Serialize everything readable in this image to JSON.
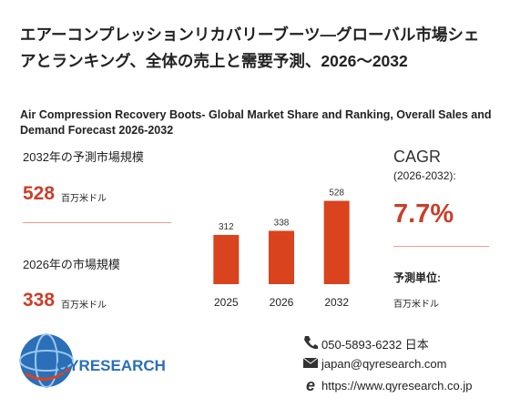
{
  "header": {
    "title": "エアーコンプレッションリカバリーブーツ—グローバル市場シェアとランキング、全体の売上と需要予測、2026～2032",
    "subtitle": "Air Compression Recovery Boots- Global Market Share and Ranking, Overall Sales and Demand Forecast 2026-2032"
  },
  "stats": [
    {
      "label": "2032年の予測市場規模",
      "value": 528,
      "unit": "百万米ドル"
    },
    {
      "label": "2026年の市場規模",
      "value": 338,
      "unit": "百万米ドル"
    }
  ],
  "chart_data": {
    "type": "bar",
    "categories": [
      "2025",
      "2026",
      "2032"
    ],
    "values": [
      312,
      338,
      528
    ],
    "color": "#d9431e",
    "ylim": [
      0,
      560
    ]
  },
  "cagr": {
    "label": "CAGR",
    "period": "(2026-2032):",
    "value": "7.7%",
    "unit_label": "予測単位:",
    "unit": "百万米ドル"
  },
  "logo": "QYRESEARCH",
  "contact": {
    "phone": "050-5893-6232 日本",
    "email": "japan@qyresearch.com",
    "url": "https://www.qyresearch.co.jp"
  }
}
